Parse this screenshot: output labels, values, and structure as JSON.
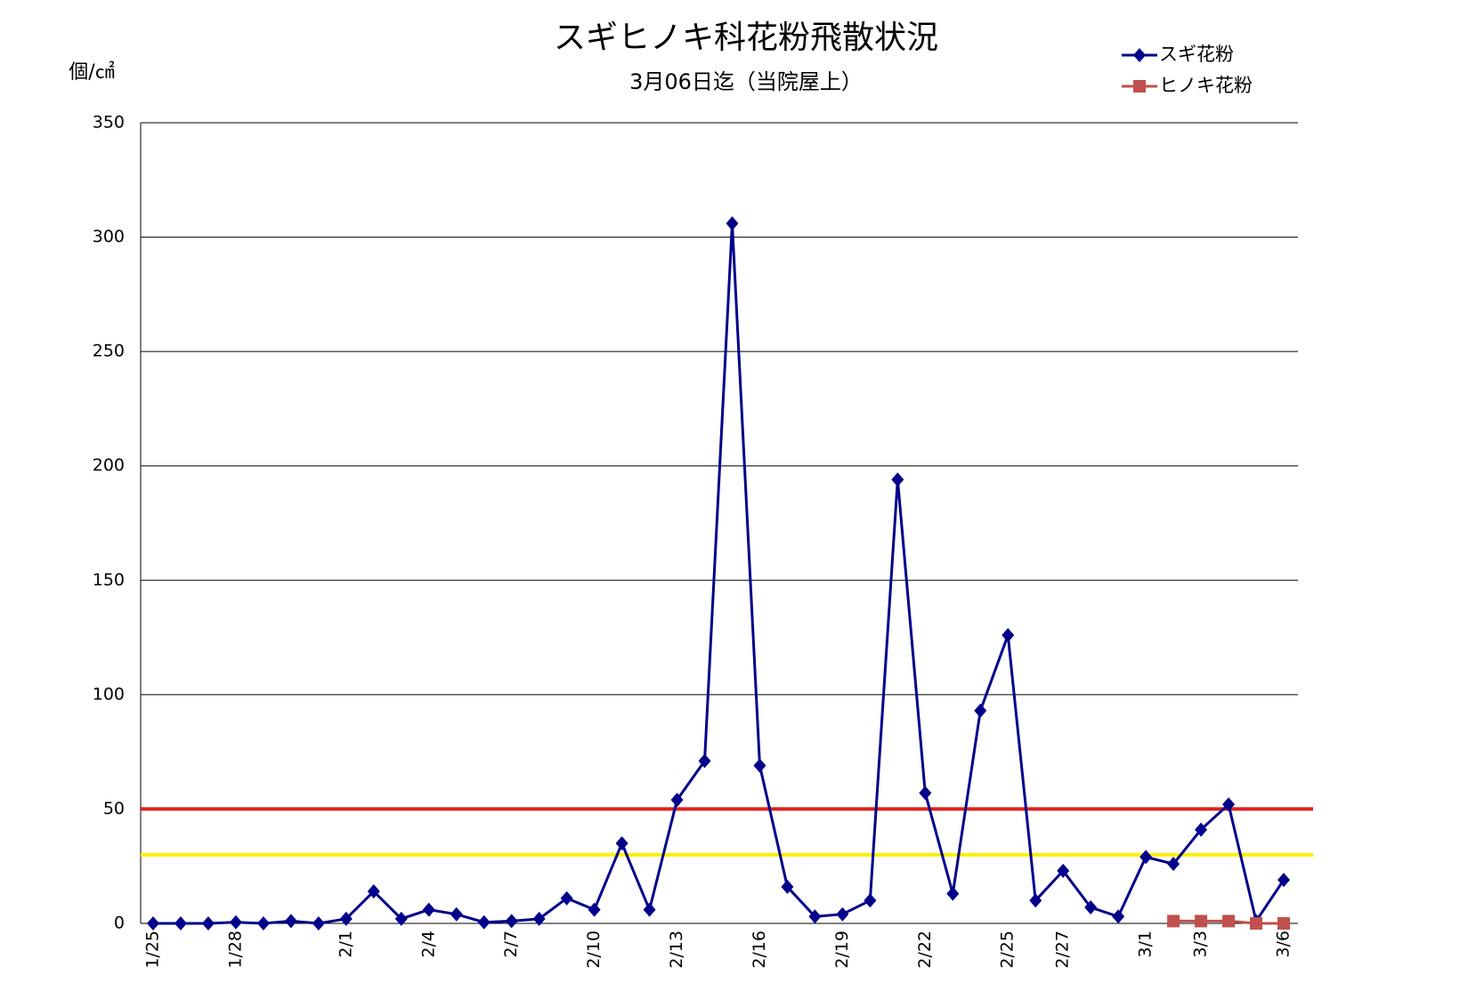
{
  "chart_data": {
    "type": "line",
    "title": "スギヒノキ科花粉飛散状況",
    "subtitle": "3月06日迄（当院屋上）",
    "y_label": "個/㎠",
    "categories": [
      "1/25",
      null,
      null,
      "1/28",
      null,
      null,
      null,
      "2/1",
      null,
      null,
      "2/4",
      null,
      null,
      "2/7",
      null,
      null,
      "2/10",
      null,
      null,
      "2/13",
      null,
      null,
      "2/16",
      null,
      null,
      "2/19",
      null,
      null,
      "2/22",
      null,
      null,
      "2/25",
      null,
      "2/27",
      null,
      null,
      "3/1",
      null,
      "3/3",
      null,
      null,
      "3/6"
    ],
    "series": [
      {
        "name": "スギ花粉",
        "color": "#00008b",
        "marker": "diamond",
        "values": [
          0,
          0,
          0,
          0.5,
          0,
          1,
          0,
          2,
          14,
          2,
          6,
          4,
          0.5,
          1,
          2,
          11,
          6,
          35,
          6,
          54,
          71,
          306,
          69,
          16,
          3,
          4,
          10,
          194,
          57,
          13,
          93,
          126,
          10,
          23,
          7,
          3,
          29,
          26,
          41,
          52,
          1,
          19
        ]
      },
      {
        "name": "ヒノキ花粉",
        "color": "#c0504d",
        "marker": "square",
        "values": [
          null,
          null,
          null,
          null,
          null,
          null,
          null,
          null,
          null,
          null,
          null,
          null,
          null,
          null,
          null,
          null,
          null,
          null,
          null,
          null,
          null,
          null,
          null,
          null,
          null,
          null,
          null,
          null,
          null,
          null,
          null,
          null,
          null,
          null,
          null,
          null,
          null,
          1,
          1,
          1,
          0,
          0
        ]
      }
    ],
    "reference_lines": [
      {
        "value": 50,
        "color": "#e0201b"
      },
      {
        "value": 30,
        "color": "#ffee00"
      }
    ],
    "ylim": [
      0,
      350
    ],
    "yticks": [
      0,
      50,
      100,
      150,
      200,
      250,
      300,
      350
    ],
    "grid": true,
    "legend": "top-right"
  }
}
